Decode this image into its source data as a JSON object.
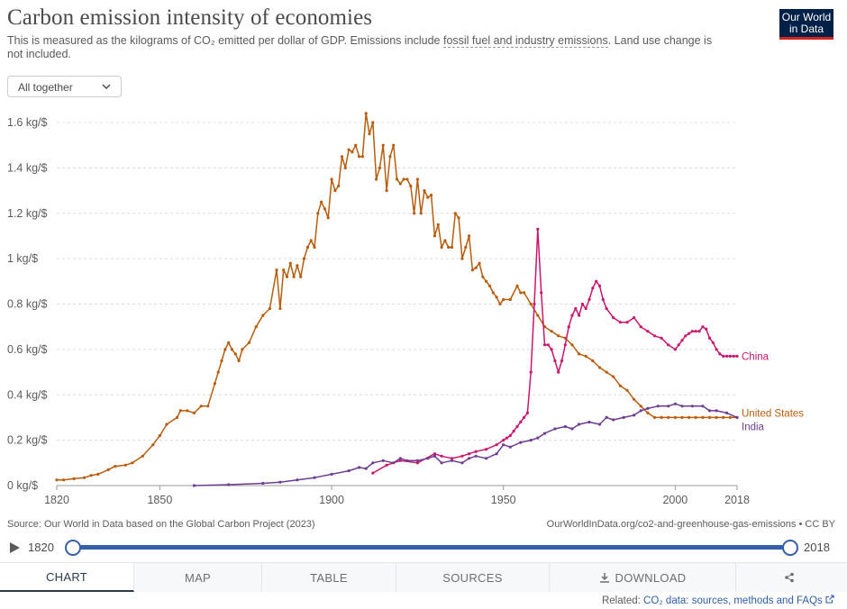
{
  "header": {
    "title": "Carbon emission intensity of economies",
    "subtitle_prefix": "This is measured as the kilograms of CO₂ emitted per dollar of GDP. Emissions include ",
    "subtitle_link": "fossil fuel and industry emissions",
    "subtitle_suffix": ". Land use change is not included.",
    "logo_line1": "Our World",
    "logo_line2": "in Data",
    "logo_color": "#002147",
    "logo_accent": "#ce261e"
  },
  "controls": {
    "mode_label": "All together"
  },
  "footer": {
    "source": "Source: Our World in Data based on the Global Carbon Project (2023)",
    "url": "OurWorldInData.org/co2-and-greenhouse-gas-emissions • CC BY"
  },
  "timeline": {
    "start": "1820",
    "end": "2018"
  },
  "tabs": {
    "chart": "CHART",
    "map": "MAP",
    "table": "TABLE",
    "sources": "SOURCES",
    "download": "DOWNLOAD"
  },
  "related": {
    "prefix": "Related: ",
    "link": "CO₂ data: sources, methods and FAQs"
  },
  "chart_data": {
    "type": "line",
    "title": "Carbon emission intensity of economies",
    "xlim": [
      1820,
      2018
    ],
    "ylim": [
      0,
      1.6
    ],
    "xticks": [
      1820,
      1850,
      1900,
      1950,
      2000,
      2018
    ],
    "yticks": [
      0,
      0.2,
      0.4,
      0.6,
      0.8,
      1.0,
      1.2,
      1.4,
      1.6
    ],
    "ytick_labels": [
      "0 kg/$",
      "0.2 kg/$",
      "0.4 kg/$",
      "0.6 kg/$",
      "0.8 kg/$",
      "1 kg/$",
      "1.2 kg/$",
      "1.4 kg/$",
      "1.6 kg/$"
    ],
    "grid": true,
    "series": [
      {
        "name": "United States",
        "color": "#b85d0f",
        "x": [
          1820,
          1822,
          1825,
          1828,
          1830,
          1832,
          1835,
          1837,
          1840,
          1842,
          1845,
          1848,
          1850,
          1852,
          1855,
          1856,
          1858,
          1860,
          1862,
          1864,
          1866,
          1867,
          1868,
          1869,
          1870,
          1871,
          1872,
          1873,
          1874,
          1876,
          1878,
          1880,
          1882,
          1884,
          1885,
          1886,
          1887,
          1888,
          1889,
          1890,
          1891,
          1892,
          1893,
          1894,
          1895,
          1896,
          1897,
          1898,
          1899,
          1900,
          1901,
          1902,
          1903,
          1904,
          1905,
          1906,
          1907,
          1908,
          1909,
          1910,
          1911,
          1912,
          1913,
          1914,
          1915,
          1916,
          1917,
          1918,
          1919,
          1920,
          1921,
          1922,
          1923,
          1924,
          1925,
          1926,
          1927,
          1928,
          1929,
          1930,
          1931,
          1932,
          1933,
          1934,
          1935,
          1936,
          1937,
          1938,
          1939,
          1940,
          1941,
          1942,
          1943,
          1944,
          1945,
          1946,
          1947,
          1948,
          1949,
          1950,
          1952,
          1954,
          1955,
          1956,
          1958,
          1960,
          1962,
          1964,
          1966,
          1968,
          1970,
          1972,
          1974,
          1976,
          1978,
          1980,
          1982,
          1984,
          1986,
          1988,
          1990,
          1992,
          1994,
          1996,
          1998,
          2000,
          2002,
          2004,
          2006,
          2008,
          2010,
          2012,
          2014,
          2016,
          2018
        ],
        "y": [
          0.025,
          0.025,
          0.03,
          0.035,
          0.045,
          0.05,
          0.07,
          0.085,
          0.09,
          0.1,
          0.13,
          0.18,
          0.22,
          0.27,
          0.3,
          0.33,
          0.33,
          0.32,
          0.35,
          0.35,
          0.45,
          0.5,
          0.55,
          0.6,
          0.63,
          0.6,
          0.58,
          0.55,
          0.6,
          0.63,
          0.7,
          0.75,
          0.78,
          0.95,
          0.78,
          0.95,
          0.92,
          0.98,
          0.92,
          0.97,
          0.92,
          1.0,
          1.05,
          1.08,
          1.05,
          1.2,
          1.25,
          1.22,
          1.18,
          1.35,
          1.3,
          1.32,
          1.45,
          1.4,
          1.48,
          1.47,
          1.5,
          1.45,
          1.45,
          1.64,
          1.55,
          1.6,
          1.35,
          1.4,
          1.5,
          1.3,
          1.45,
          1.5,
          1.35,
          1.33,
          1.35,
          1.35,
          1.32,
          1.2,
          1.35,
          1.2,
          1.3,
          1.27,
          1.28,
          1.1,
          1.15,
          1.05,
          1.08,
          1.05,
          1.05,
          1.2,
          1.18,
          1.0,
          1.05,
          1.1,
          0.95,
          0.96,
          0.98,
          0.92,
          0.9,
          0.88,
          0.85,
          0.83,
          0.8,
          0.82,
          0.82,
          0.88,
          0.85,
          0.85,
          0.8,
          0.75,
          0.7,
          0.68,
          0.66,
          0.65,
          0.62,
          0.58,
          0.57,
          0.55,
          0.52,
          0.5,
          0.48,
          0.44,
          0.42,
          0.38,
          0.35,
          0.32,
          0.3,
          0.3,
          0.3,
          0.3,
          0.3,
          0.3,
          0.3,
          0.3,
          0.3,
          0.3,
          0.3,
          0.3,
          0.3
        ],
        "label_y": 0.32
      },
      {
        "name": "China",
        "color": "#c9176d",
        "x": [
          1912,
          1916,
          1920,
          1925,
          1930,
          1932,
          1935,
          1938,
          1940,
          1942,
          1945,
          1948,
          1950,
          1951,
          1952,
          1953,
          1954,
          1955,
          1956,
          1957,
          1958,
          1959,
          1960,
          1961,
          1962,
          1963,
          1964,
          1965,
          1966,
          1967,
          1968,
          1969,
          1970,
          1971,
          1972,
          1973,
          1974,
          1975,
          1976,
          1977,
          1978,
          1979,
          1980,
          1982,
          1984,
          1986,
          1988,
          1990,
          1992,
          1994,
          1996,
          1998,
          2000,
          2001,
          2002,
          2003,
          2004,
          2005,
          2006,
          2007,
          2008,
          2009,
          2010,
          2011,
          2012,
          2013,
          2014,
          2015,
          2016,
          2017,
          2018
        ],
        "y": [
          0.055,
          0.09,
          0.11,
          0.1,
          0.14,
          0.13,
          0.12,
          0.13,
          0.14,
          0.15,
          0.16,
          0.18,
          0.2,
          0.21,
          0.22,
          0.24,
          0.26,
          0.28,
          0.3,
          0.32,
          0.5,
          0.8,
          1.13,
          0.85,
          0.62,
          0.62,
          0.6,
          0.55,
          0.5,
          0.55,
          0.62,
          0.7,
          0.75,
          0.78,
          0.75,
          0.8,
          0.78,
          0.82,
          0.87,
          0.9,
          0.88,
          0.82,
          0.78,
          0.74,
          0.72,
          0.72,
          0.74,
          0.7,
          0.68,
          0.66,
          0.65,
          0.62,
          0.6,
          0.62,
          0.64,
          0.66,
          0.67,
          0.68,
          0.68,
          0.68,
          0.7,
          0.69,
          0.65,
          0.63,
          0.6,
          0.58,
          0.57,
          0.57,
          0.57,
          0.57,
          0.57
        ],
        "label_y": 0.57
      },
      {
        "name": "India",
        "color": "#6d3e91",
        "x": [
          1860,
          1870,
          1880,
          1885,
          1890,
          1895,
          1900,
          1905,
          1908,
          1910,
          1912,
          1915,
          1918,
          1920,
          1922,
          1925,
          1928,
          1930,
          1932,
          1935,
          1938,
          1940,
          1942,
          1945,
          1948,
          1950,
          1952,
          1955,
          1958,
          1960,
          1962,
          1965,
          1968,
          1970,
          1972,
          1975,
          1978,
          1980,
          1982,
          1985,
          1988,
          1990,
          1992,
          1995,
          1998,
          2000,
          2002,
          2005,
          2008,
          2010,
          2012,
          2015,
          2018
        ],
        "y": [
          0.0,
          0.004,
          0.01,
          0.015,
          0.025,
          0.035,
          0.05,
          0.065,
          0.08,
          0.075,
          0.1,
          0.11,
          0.1,
          0.12,
          0.11,
          0.11,
          0.12,
          0.13,
          0.1,
          0.11,
          0.1,
          0.12,
          0.13,
          0.12,
          0.14,
          0.18,
          0.17,
          0.19,
          0.2,
          0.21,
          0.23,
          0.25,
          0.26,
          0.25,
          0.27,
          0.28,
          0.27,
          0.3,
          0.29,
          0.3,
          0.31,
          0.33,
          0.34,
          0.35,
          0.35,
          0.36,
          0.35,
          0.35,
          0.35,
          0.33,
          0.33,
          0.32,
          0.3
        ],
        "label_y": 0.26
      }
    ]
  }
}
